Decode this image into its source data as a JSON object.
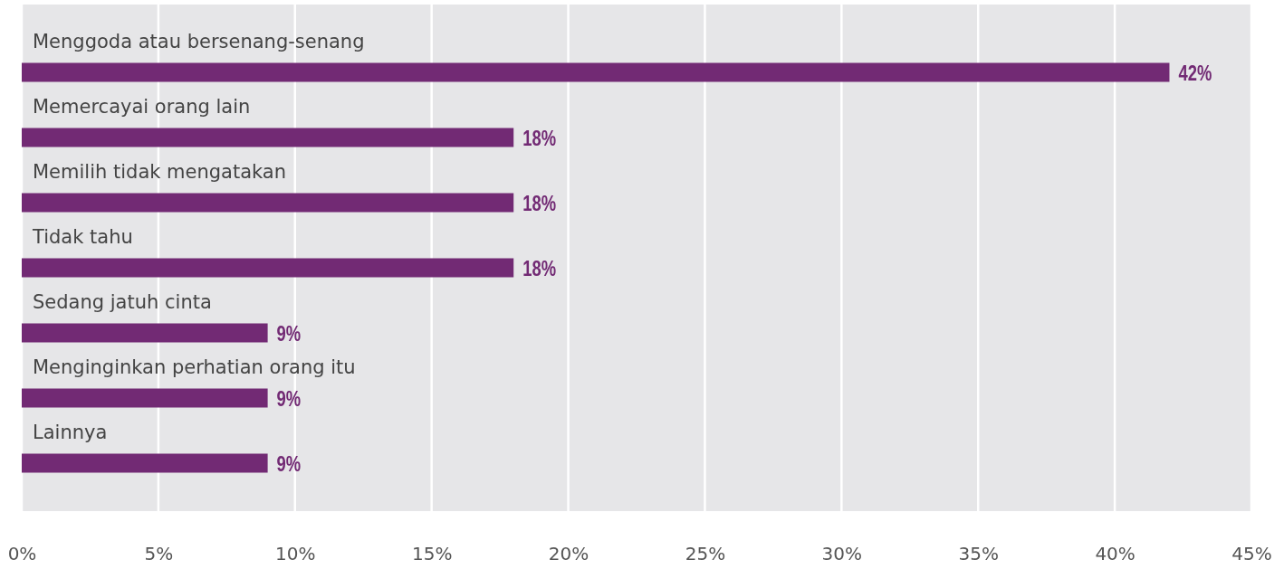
{
  "chart_data": {
    "type": "bar",
    "orientation": "horizontal",
    "categories": [
      "Menggoda atau bersenang-senang",
      "Memercayai orang lain",
      "Memilih tidak mengatakan",
      "Tidak tahu",
      "Sedang jatuh cinta",
      "Menginginkan perhatian orang itu",
      "Lainnya"
    ],
    "values": [
      42,
      18,
      18,
      18,
      9,
      9,
      9
    ],
    "value_labels": [
      "42%",
      "18%",
      "18%",
      "18%",
      "9%",
      "9%",
      "9%"
    ],
    "color": "#722a74",
    "xlim": [
      0,
      45
    ],
    "xticks": [
      {
        "value": 0,
        "label": "0%"
      },
      {
        "value": 5,
        "label": "5%"
      },
      {
        "value": 10,
        "label": "10%"
      },
      {
        "value": 15,
        "label": "15%"
      },
      {
        "value": 20,
        "label": "20%"
      },
      {
        "value": 25,
        "label": "25%"
      },
      {
        "value": 30,
        "label": "30%"
      },
      {
        "value": 35,
        "label": "35%"
      },
      {
        "value": 40,
        "label": "40%"
      },
      {
        "value": 45,
        "label": "45%"
      }
    ],
    "grid": "x"
  }
}
